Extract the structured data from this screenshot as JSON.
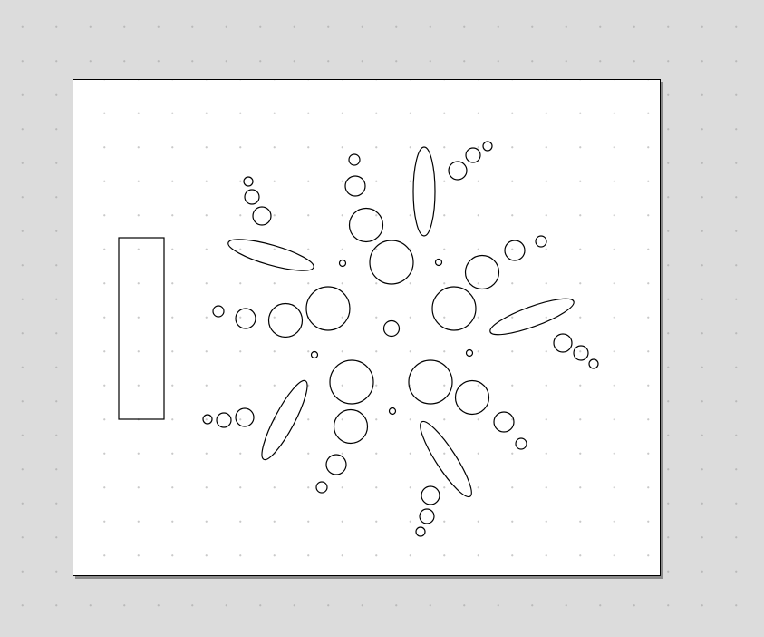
{
  "canvas": {
    "background": "#dcdcdc",
    "page_color": "#ffffff",
    "stroke_color": "#000000",
    "grid": true
  }
}
